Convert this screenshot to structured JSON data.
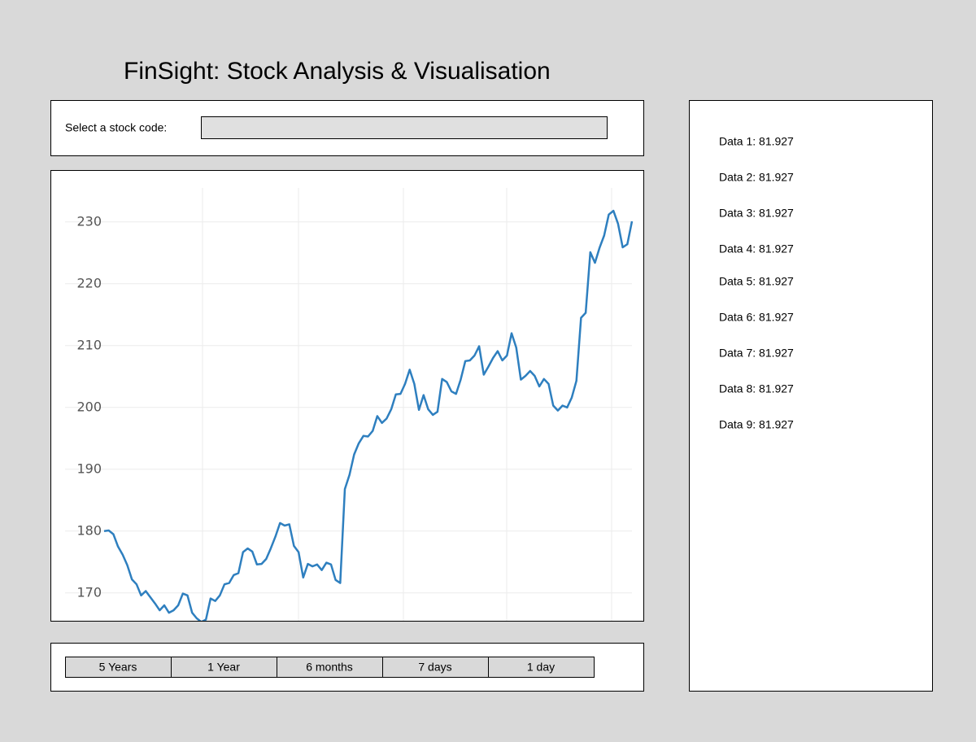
{
  "header": {
    "title": "FinSight: Stock Analysis & Visualisation"
  },
  "search": {
    "label": "Select a stock code:"
  },
  "chart_data": {
    "type": "line",
    "color": "#2e7fbf",
    "grid": true,
    "ylim": [
      165.5,
      235.5
    ],
    "yticks": [
      170,
      180,
      190,
      200,
      210,
      220,
      230
    ],
    "values": [
      180.0,
      180.1,
      179.5,
      177.5,
      176.2,
      174.5,
      172.2,
      171.4,
      169.6,
      170.3,
      169.3,
      168.3,
      167.2,
      168.0,
      166.8,
      167.2,
      168.0,
      169.9,
      169.6,
      166.8,
      165.9,
      165.3,
      165.7,
      169.1,
      168.7,
      169.6,
      171.4,
      171.6,
      172.9,
      173.2,
      176.6,
      177.2,
      176.7,
      174.6,
      174.7,
      175.5,
      177.2,
      179.1,
      181.3,
      180.9,
      181.1,
      177.6,
      176.6,
      172.5,
      174.7,
      174.3,
      174.6,
      173.7,
      174.9,
      174.6,
      172.1,
      171.6,
      186.8,
      189.1,
      192.4,
      194.2,
      195.4,
      195.3,
      196.2,
      198.6,
      197.5,
      198.2,
      199.7,
      202.1,
      202.2,
      203.8,
      206.1,
      203.8,
      199.6,
      202.0,
      199.7,
      198.8,
      199.3,
      204.6,
      204.1,
      202.6,
      202.2,
      204.5,
      207.5,
      207.6,
      208.4,
      209.9,
      205.3,
      206.6,
      208.0,
      209.1,
      207.6,
      208.4,
      212.0,
      209.7,
      204.5,
      205.1,
      205.9,
      205.1,
      203.4,
      204.6,
      203.8,
      200.3,
      199.5,
      200.3,
      200.0,
      201.6,
      204.3,
      214.5,
      215.3,
      225.1,
      223.4,
      225.8,
      227.8,
      231.2,
      231.8,
      229.7,
      225.9,
      226.4,
      230.1
    ]
  },
  "data_list": [
    "Data 1: 81.927",
    "Data 2: 81.927",
    "Data 3: 81.927",
    "Data 4: 81.927",
    "Data 5: 81.927",
    "Data 6: 81.927",
    "Data 7: 81.927",
    "Data 8: 81.927",
    "Data 9: 81.927"
  ],
  "buttons": [
    "5 Years",
    "1 Year",
    "6 months",
    "7 days",
    "1 day"
  ]
}
